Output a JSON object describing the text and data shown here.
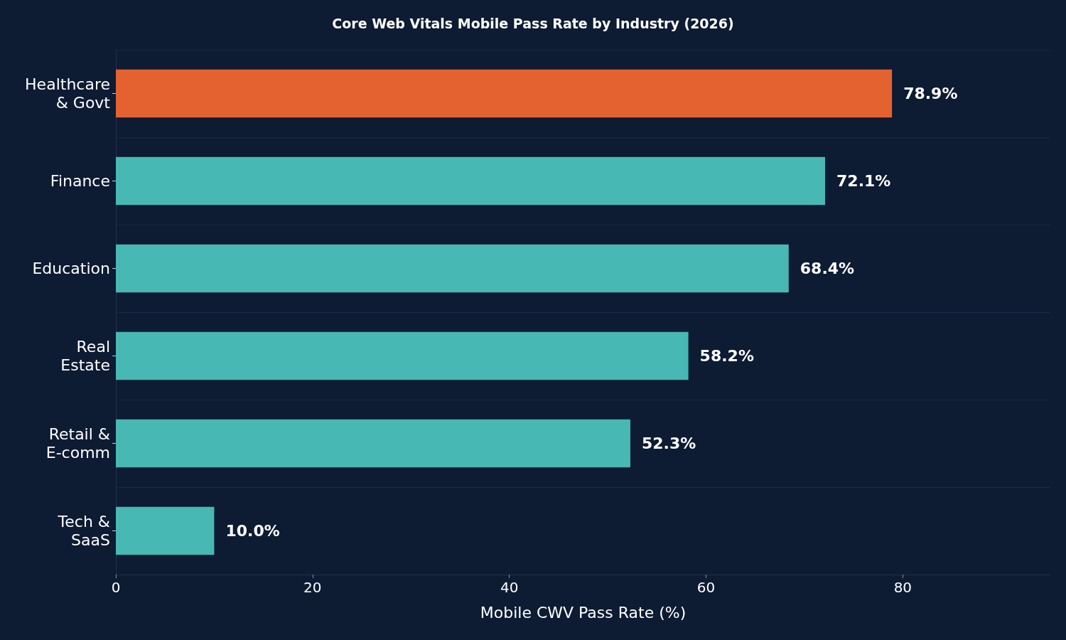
{
  "chart_data": {
    "type": "bar",
    "orientation": "horizontal",
    "title": "Core Web Vitals Mobile Pass Rate by Industry (2026)",
    "xlabel": "Mobile CWV Pass Rate (%)",
    "categories": [
      "Healthcare\n& Govt",
      "Finance",
      "Education",
      "Real\nEstate",
      "Retail &\nE-comm",
      "Tech &\nSaaS"
    ],
    "values": [
      78.9,
      72.1,
      68.4,
      58.2,
      52.3,
      10.0
    ],
    "colors": [
      "#e4622f",
      "#47b8b3",
      "#47b8b3",
      "#47b8b3",
      "#47b8b3",
      "#47b8b3"
    ],
    "value_labels": [
      "78.9%",
      "72.1%",
      "68.4%",
      "58.2%",
      "52.3%",
      "10.0%"
    ],
    "xlim": [
      0,
      95
    ],
    "xticks": [
      0,
      20,
      40,
      60,
      80
    ],
    "grid": "y"
  }
}
